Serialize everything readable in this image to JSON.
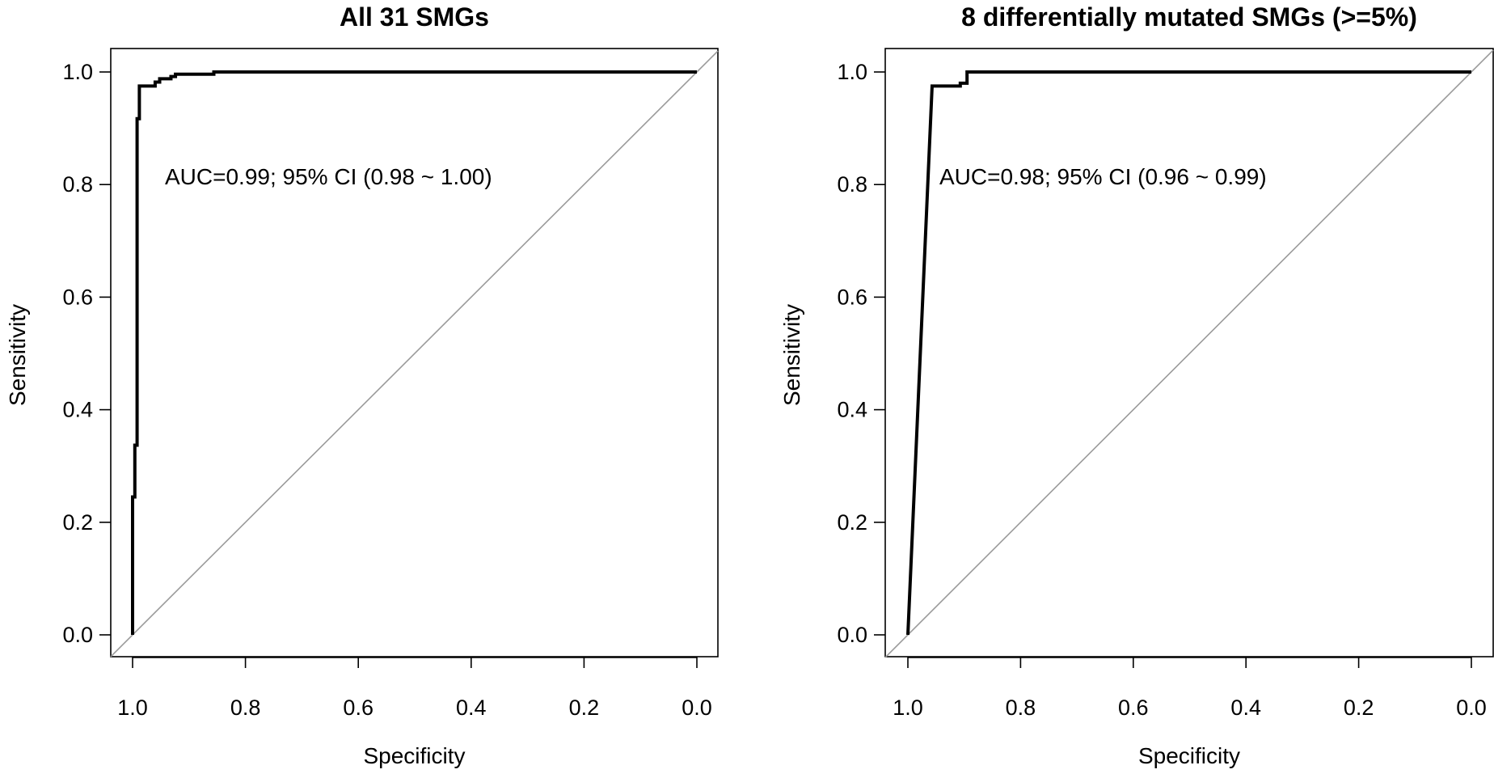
{
  "chart_data": [
    {
      "type": "line",
      "title": "All 31 SMGs",
      "xlabel": "Specificity",
      "ylabel": "Sensitivity",
      "xlim": [
        1.0,
        0.0
      ],
      "ylim": [
        0.0,
        1.0
      ],
      "x_reversed": true,
      "xticks": [
        "1.0",
        "0.8",
        "0.6",
        "0.4",
        "0.2",
        "0.0"
      ],
      "yticks": [
        "0.0",
        "0.2",
        "0.4",
        "0.6",
        "0.8",
        "1.0"
      ],
      "grid": false,
      "reference_line": [
        [
          1.0,
          0.0
        ],
        [
          0.0,
          1.0
        ]
      ],
      "annotation": "AUC=0.99; 95% CI (0.98 ~ 1.00)",
      "curve": [
        [
          1.0,
          0.0
        ],
        [
          1.0,
          0.245
        ],
        [
          0.996,
          0.245
        ],
        [
          0.996,
          0.337
        ],
        [
          0.992,
          0.337
        ],
        [
          0.992,
          0.917
        ],
        [
          0.988,
          0.917
        ],
        [
          0.988,
          0.975
        ],
        [
          0.96,
          0.975
        ],
        [
          0.96,
          0.982
        ],
        [
          0.952,
          0.982
        ],
        [
          0.952,
          0.988
        ],
        [
          0.932,
          0.988
        ],
        [
          0.932,
          0.992
        ],
        [
          0.924,
          0.992
        ],
        [
          0.924,
          0.996
        ],
        [
          0.856,
          0.996
        ],
        [
          0.856,
          1.0
        ],
        [
          0.0,
          1.0
        ]
      ]
    },
    {
      "type": "line",
      "title": "8 differentially mutated SMGs (>=5%)",
      "xlabel": "Specificity",
      "ylabel": "Sensitivity",
      "xlim": [
        1.0,
        0.0
      ],
      "ylim": [
        0.0,
        1.0
      ],
      "x_reversed": true,
      "xticks": [
        "1.0",
        "0.8",
        "0.6",
        "0.4",
        "0.2",
        "0.0"
      ],
      "yticks": [
        "0.0",
        "0.2",
        "0.4",
        "0.6",
        "0.8",
        "1.0"
      ],
      "grid": false,
      "reference_line": [
        [
          1.0,
          0.0
        ],
        [
          0.0,
          1.0
        ]
      ],
      "annotation": "AUC=0.98; 95% CI (0.96 ~ 0.99)",
      "curve": [
        [
          1.0,
          0.0
        ],
        [
          0.957,
          0.975
        ],
        [
          0.907,
          0.975
        ],
        [
          0.907,
          0.98
        ],
        [
          0.895,
          0.98
        ],
        [
          0.895,
          1.0
        ],
        [
          0.0,
          1.0
        ]
      ]
    }
  ]
}
